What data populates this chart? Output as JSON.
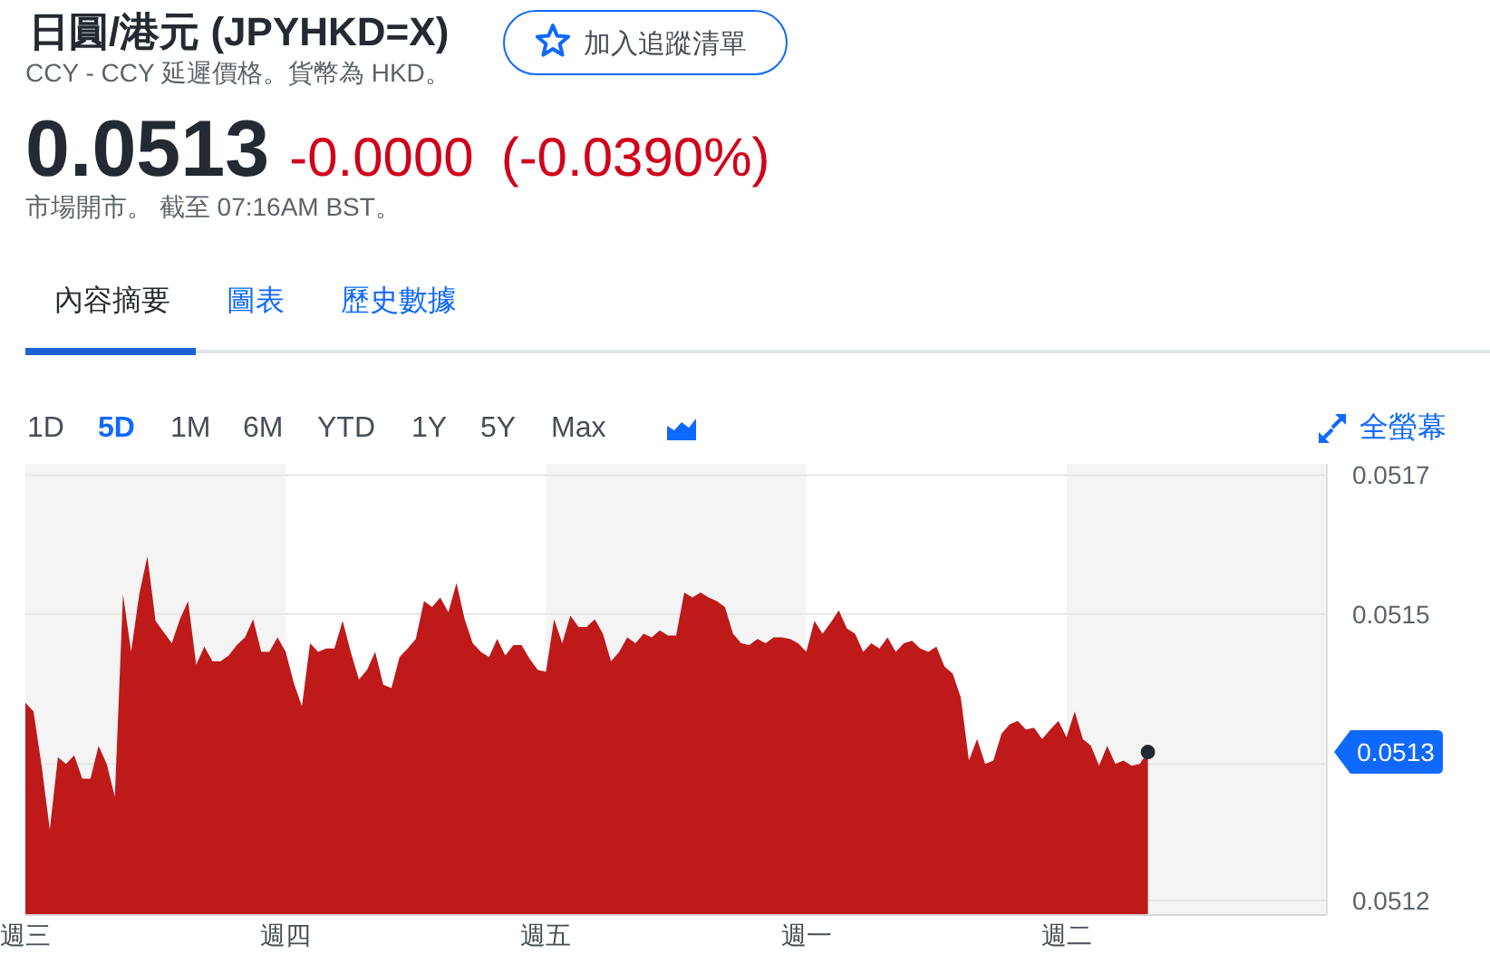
{
  "chart_data": {
    "type": "area",
    "title": "日圓/港元 (JPYHKD=X)",
    "subtitle": "CCY - CCY 延遲價格。貨幣為 HKD。",
    "annotations": [
      "0.0513",
      "-0.0000",
      "(-0.0390%)",
      "市場開市。 截至 07:16AM BST。",
      "加入追蹤清單",
      "內容摘要",
      "圖表",
      "歷史數據",
      "1D",
      "5D",
      "1M",
      "6M",
      "YTD",
      "1Y",
      "5Y",
      "Max",
      "全螢幕",
      "0.0513"
    ],
    "categories": [
      "週三",
      null,
      null,
      null,
      null,
      null,
      null,
      null,
      null,
      null,
      null,
      null,
      null,
      null,
      null,
      null,
      null,
      null,
      null,
      null,
      null,
      null,
      null,
      null,
      null,
      null,
      null,
      null,
      null,
      null,
      null,
      null,
      "週四",
      null,
      null,
      null,
      null,
      null,
      null,
      null,
      null,
      null,
      null,
      null,
      null,
      null,
      null,
      null,
      null,
      null,
      null,
      null,
      null,
      null,
      null,
      null,
      null,
      null,
      null,
      null,
      null,
      null,
      null,
      null,
      "週五",
      null,
      null,
      null,
      null,
      null,
      null,
      null,
      null,
      null,
      null,
      null,
      null,
      null,
      null,
      null,
      null,
      null,
      null,
      null,
      null,
      null,
      null,
      null,
      null,
      null,
      null,
      null,
      null,
      null,
      null,
      null,
      "週一",
      null,
      null,
      null,
      null,
      null,
      null,
      null,
      null,
      null,
      null,
      null,
      null,
      null,
      null,
      null,
      null,
      null,
      null,
      null,
      null,
      null,
      null,
      null,
      null,
      null,
      null,
      null,
      null,
      null,
      null,
      null,
      "週二",
      null,
      null,
      null,
      null,
      null,
      null,
      null,
      null,
      null,
      null,
      null,
      null,
      null,
      null,
      null,
      null,
      null,
      null,
      null,
      null,
      null,
      null,
      null,
      null,
      null,
      null,
      null,
      null,
      null,
      null,
      null
    ],
    "series": [
      {
        "color": "#be1a1a",
        "values": [
          0.051397,
          0.051387,
          0.051324,
          0.05125,
          0.051334,
          0.051326,
          0.051336,
          0.051309,
          0.051309,
          0.051347,
          0.051326,
          0.051288,
          0.051523,
          0.051456,
          0.051523,
          0.051567,
          0.051492,
          0.051479,
          0.051466,
          0.051494,
          0.051515,
          0.051441,
          0.051462,
          0.051445,
          0.051445,
          0.051452,
          0.051464,
          0.051473,
          0.051494,
          0.051456,
          0.051456,
          0.051473,
          0.051456,
          0.05142,
          0.051393,
          0.051466,
          0.051456,
          0.05146,
          0.05146,
          0.051492,
          0.051456,
          0.051424,
          0.051435,
          0.051456,
          0.051418,
          0.051414,
          0.05145,
          0.05146,
          0.051471,
          0.051515,
          0.051508,
          0.051519,
          0.051502,
          0.051536,
          0.051494,
          0.051466,
          0.051456,
          0.05145,
          0.051471,
          0.051452,
          0.051464,
          0.051464,
          0.051448,
          0.051435,
          0.051433,
          0.051494,
          0.051466,
          0.051498,
          0.051485,
          0.051485,
          0.051494,
          0.051477,
          0.051445,
          0.051456,
          0.051473,
          0.051466,
          0.051477,
          0.051473,
          0.051481,
          0.051475,
          0.051475,
          0.051525,
          0.051519,
          0.051525,
          0.051519,
          0.051515,
          0.051508,
          0.051477,
          0.051466,
          0.051464,
          0.051471,
          0.051466,
          0.051473,
          0.051473,
          0.051471,
          0.051466,
          0.051456,
          0.051492,
          0.051477,
          0.05149,
          0.051504,
          0.051483,
          0.051477,
          0.051456,
          0.051466,
          0.05146,
          0.051473,
          0.051456,
          0.051466,
          0.051469,
          0.05146,
          0.051456,
          0.051462,
          0.051439,
          0.051431,
          0.051403,
          0.05133,
          0.051355,
          0.051326,
          0.05133,
          0.051361,
          0.051372,
          0.051376,
          0.051366,
          0.051368,
          0.051355,
          0.051366,
          0.051376,
          0.051357,
          0.051387,
          0.051355,
          0.051347,
          0.051324,
          0.051347,
          0.051326,
          0.05133,
          0.051324,
          0.051326,
          0.05134,
          null,
          null,
          null,
          null,
          null,
          null,
          null,
          null,
          null,
          null,
          null,
          null,
          null,
          null,
          null,
          null,
          null,
          null,
          null,
          null,
          null
        ]
      },
      {
        "type": "scatter",
        "color": "#232a31",
        "marker": "circle",
        "values": [
          null,
          null,
          null,
          null,
          null,
          null,
          null,
          null,
          null,
          null,
          null,
          null,
          null,
          null,
          null,
          null,
          null,
          null,
          null,
          null,
          null,
          null,
          null,
          null,
          null,
          null,
          null,
          null,
          null,
          null,
          null,
          null,
          null,
          null,
          null,
          null,
          null,
          null,
          null,
          null,
          null,
          null,
          null,
          null,
          null,
          null,
          null,
          null,
          null,
          null,
          null,
          null,
          null,
          null,
          null,
          null,
          null,
          null,
          null,
          null,
          null,
          null,
          null,
          null,
          null,
          null,
          null,
          null,
          null,
          null,
          null,
          null,
          null,
          null,
          null,
          null,
          null,
          null,
          null,
          null,
          null,
          null,
          null,
          null,
          null,
          null,
          null,
          null,
          null,
          null,
          null,
          null,
          null,
          null,
          null,
          null,
          null,
          null,
          null,
          null,
          null,
          null,
          null,
          null,
          null,
          null,
          null,
          null,
          null,
          null,
          null,
          null,
          null,
          null,
          null,
          null,
          null,
          null,
          null,
          null,
          null,
          null,
          null,
          null,
          null,
          null,
          null,
          null,
          null,
          null,
          null,
          null,
          null,
          null,
          null,
          null,
          null,
          null,
          0.05134,
          null,
          null,
          null,
          null,
          null,
          null,
          null,
          null,
          null,
          null,
          null,
          null,
          null,
          null,
          null,
          null,
          null,
          null,
          null,
          null,
          null
        ]
      }
    ],
    "ylim": [
      0.051151,
      0.051674
    ],
    "yticks": [
      {
        "value": 0.051661,
        "label": "0.0517"
      },
      0.0515,
      {
        "value": 0.051326,
        "label": null
      },
      {
        "value": 0.051168,
        "label": "0.0512"
      }
    ],
    "grid": "y",
    "bands": [
      {
        "axis": "x",
        "from": "週三",
        "to": "週四",
        "color": "#f4f4f4"
      },
      {
        "axis": "x",
        "from": "週五",
        "to": "週一",
        "color": "#f4f4f4"
      }
    ]
  }
}
